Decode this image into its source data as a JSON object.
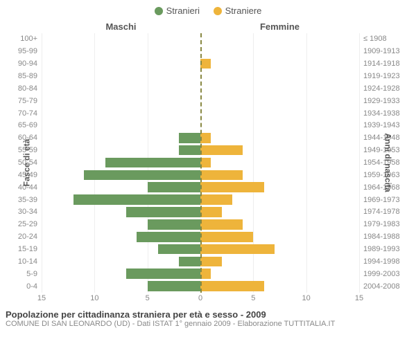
{
  "legend": {
    "male": {
      "label": "Stranieri",
      "color": "#6a9a5e"
    },
    "female": {
      "label": "Straniere",
      "color": "#eeb43b"
    }
  },
  "headers": {
    "male": "Maschi",
    "female": "Femmine"
  },
  "axis_labels": {
    "left": "Fasce di età",
    "right": "Anni di nascita"
  },
  "x_axis": {
    "max": 15,
    "ticks": [
      15,
      10,
      5,
      0,
      5,
      10,
      15
    ]
  },
  "grid": {
    "color": "#eeeeee",
    "center_color": "#888842"
  },
  "rows": [
    {
      "age": "100+",
      "years": "≤ 1908",
      "male": 0,
      "female": 0
    },
    {
      "age": "95-99",
      "years": "1909-1913",
      "male": 0,
      "female": 0
    },
    {
      "age": "90-94",
      "years": "1914-1918",
      "male": 0,
      "female": 1
    },
    {
      "age": "85-89",
      "years": "1919-1923",
      "male": 0,
      "female": 0
    },
    {
      "age": "80-84",
      "years": "1924-1928",
      "male": 0,
      "female": 0
    },
    {
      "age": "75-79",
      "years": "1929-1933",
      "male": 0,
      "female": 0
    },
    {
      "age": "70-74",
      "years": "1934-1938",
      "male": 0,
      "female": 0
    },
    {
      "age": "65-69",
      "years": "1939-1943",
      "male": 0,
      "female": 0
    },
    {
      "age": "60-64",
      "years": "1944-1948",
      "male": 2,
      "female": 1
    },
    {
      "age": "55-59",
      "years": "1949-1953",
      "male": 2,
      "female": 4
    },
    {
      "age": "50-54",
      "years": "1954-1958",
      "male": 9,
      "female": 1
    },
    {
      "age": "45-49",
      "years": "1959-1963",
      "male": 11,
      "female": 4
    },
    {
      "age": "40-44",
      "years": "1964-1968",
      "male": 5,
      "female": 6
    },
    {
      "age": "35-39",
      "years": "1969-1973",
      "male": 12,
      "female": 3
    },
    {
      "age": "30-34",
      "years": "1974-1978",
      "male": 7,
      "female": 2
    },
    {
      "age": "25-29",
      "years": "1979-1983",
      "male": 5,
      "female": 4
    },
    {
      "age": "20-24",
      "years": "1984-1988",
      "male": 6,
      "female": 5
    },
    {
      "age": "15-19",
      "years": "1989-1993",
      "male": 4,
      "female": 7
    },
    {
      "age": "10-14",
      "years": "1994-1998",
      "male": 2,
      "female": 2
    },
    {
      "age": "5-9",
      "years": "1999-2003",
      "male": 7,
      "female": 1
    },
    {
      "age": "0-4",
      "years": "2004-2008",
      "male": 5,
      "female": 6
    }
  ],
  "footer": {
    "title": "Popolazione per cittadinanza straniera per età e sesso - 2009",
    "subtitle": "COMUNE DI SAN LEONARDO (UD) - Dati ISTAT 1° gennaio 2009 - Elaborazione TUTTITALIA.IT"
  }
}
